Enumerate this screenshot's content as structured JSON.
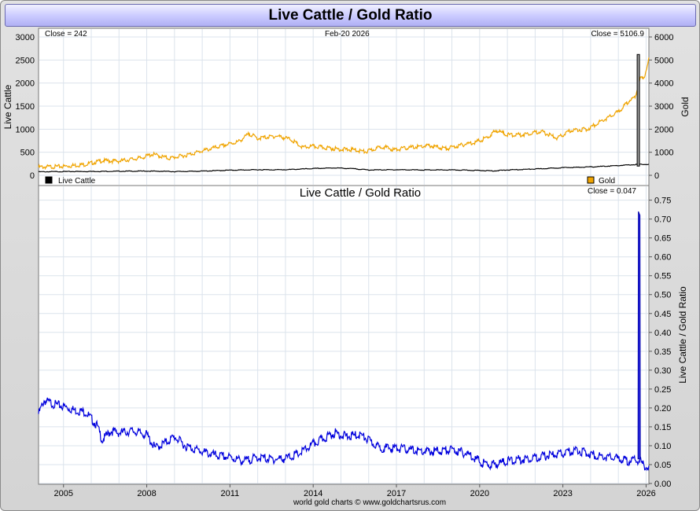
{
  "header": {
    "title": "Live Cattle / Gold Ratio"
  },
  "footer": {
    "credit": "world gold charts © www.goldchartsrus.com"
  },
  "chart_data": [
    {
      "type": "line",
      "title": "",
      "date_label": "Feb-20  2026",
      "x_ticks": [
        "2005",
        "2008",
        "2011",
        "2014",
        "2017",
        "2020",
        "2023",
        "2026"
      ],
      "left_axis": {
        "label": "Live Cattle",
        "range": [
          0,
          3000
        ],
        "ticks": [
          "0",
          "500",
          "1000",
          "1500",
          "2000",
          "2500",
          "3000"
        ]
      },
      "right_axis": {
        "label": "Gold",
        "range": [
          0,
          6000
        ],
        "ticks": [
          "0",
          "1000",
          "2000",
          "3000",
          "4000",
          "5000",
          "6000"
        ]
      },
      "series": [
        {
          "name": "Live Cattle",
          "axis": "left",
          "close_label": "Close = 242",
          "color": "#000000",
          "points": [
            [
              2004.1,
              80
            ],
            [
              2005,
              85
            ],
            [
              2006,
              88
            ],
            [
              2007,
              92
            ],
            [
              2008,
              95
            ],
            [
              2008.7,
              90
            ],
            [
              2009,
              85
            ],
            [
              2010,
              95
            ],
            [
              2011,
              115
            ],
            [
              2012,
              125
            ],
            [
              2013,
              125
            ],
            [
              2014,
              150
            ],
            [
              2014.8,
              165
            ],
            [
              2015.5,
              145
            ],
            [
              2016,
              120
            ],
            [
              2017,
              125
            ],
            [
              2018,
              120
            ],
            [
              2019,
              120
            ],
            [
              2020,
              110
            ],
            [
              2020.5,
              100
            ],
            [
              2021,
              120
            ],
            [
              2022,
              140
            ],
            [
              2023,
              170
            ],
            [
              2024,
              185
            ],
            [
              2025,
              215
            ],
            [
              2025.7,
              240
            ],
            [
              2026.1,
              242
            ]
          ]
        },
        {
          "name": "Gold",
          "axis": "right",
          "close_label": "Close = 5106.9",
          "color": "#f0a400",
          "points": [
            [
              2004.1,
              400
            ],
            [
              2005,
              430
            ],
            [
              2005.8,
              520
            ],
            [
              2006.4,
              680
            ],
            [
              2007,
              660
            ],
            [
              2007.8,
              800
            ],
            [
              2008.2,
              960
            ],
            [
              2008.8,
              780
            ],
            [
              2009.5,
              940
            ],
            [
              2010,
              1100
            ],
            [
              2010.8,
              1350
            ],
            [
              2011.3,
              1500
            ],
            [
              2011.7,
              1850
            ],
            [
              2012,
              1650
            ],
            [
              2012.7,
              1750
            ],
            [
              2013.2,
              1600
            ],
            [
              2013.6,
              1250
            ],
            [
              2014,
              1300
            ],
            [
              2014.9,
              1180
            ],
            [
              2015.5,
              1150
            ],
            [
              2015.9,
              1060
            ],
            [
              2016.5,
              1300
            ],
            [
              2016.9,
              1150
            ],
            [
              2017.5,
              1250
            ],
            [
              2018.2,
              1330
            ],
            [
              2018.8,
              1200
            ],
            [
              2019.5,
              1400
            ],
            [
              2019.9,
              1500
            ],
            [
              2020.3,
              1700
            ],
            [
              2020.6,
              2000
            ],
            [
              2021,
              1800
            ],
            [
              2021.5,
              1800
            ],
            [
              2022.2,
              1950
            ],
            [
              2022.8,
              1650
            ],
            [
              2023.3,
              2000
            ],
            [
              2023.9,
              2050
            ],
            [
              2024.3,
              2350
            ],
            [
              2024.8,
              2650
            ],
            [
              2025.1,
              2900
            ],
            [
              2025.4,
              3300
            ],
            [
              2025.6,
              3400
            ],
            [
              2025.75,
              4100
            ],
            [
              2025.82,
              4300
            ],
            [
              2025.9,
              4200
            ],
            [
              2026,
              4600
            ],
            [
              2026.1,
              5107
            ]
          ]
        }
      ],
      "spike": {
        "x": 2025.72,
        "top": 2620,
        "bottom": 200,
        "axis": "left"
      }
    },
    {
      "type": "line",
      "title": "Live Cattle  /  Gold Ratio",
      "x_ticks": [
        "2005",
        "2008",
        "2011",
        "2014",
        "2017",
        "2020",
        "2023",
        "2026"
      ],
      "right_axis": {
        "label": "Live Cattle / Gold Ratio",
        "range": [
          0,
          0.77
        ],
        "ticks": [
          "0.00",
          "0.05",
          "0.10",
          "0.15",
          "0.20",
          "0.25",
          "0.30",
          "0.35",
          "0.40",
          "0.45",
          "0.50",
          "0.55",
          "0.60",
          "0.65",
          "0.70",
          "0.75"
        ]
      },
      "series": [
        {
          "name": "Live Cattle / Gold Ratio",
          "close_label": "Close = 0.047",
          "color": "#0000dd",
          "points": [
            [
              2004.1,
              0.19
            ],
            [
              2004.3,
              0.225
            ],
            [
              2004.7,
              0.215
            ],
            [
              2005,
              0.21
            ],
            [
              2005.4,
              0.2
            ],
            [
              2005.8,
              0.195
            ],
            [
              2006.2,
              0.16
            ],
            [
              2006.4,
              0.12
            ],
            [
              2006.7,
              0.145
            ],
            [
              2007,
              0.14
            ],
            [
              2007.5,
              0.145
            ],
            [
              2008,
              0.135
            ],
            [
              2008.3,
              0.1
            ],
            [
              2008.7,
              0.115
            ],
            [
              2009,
              0.13
            ],
            [
              2009.4,
              0.105
            ],
            [
              2010,
              0.09
            ],
            [
              2010.5,
              0.08
            ],
            [
              2011,
              0.075
            ],
            [
              2011.5,
              0.065
            ],
            [
              2012,
              0.075
            ],
            [
              2012.5,
              0.07
            ],
            [
              2013,
              0.072
            ],
            [
              2013.5,
              0.085
            ],
            [
              2014,
              0.11
            ],
            [
              2014.5,
              0.13
            ],
            [
              2014.8,
              0.14
            ],
            [
              2015.2,
              0.13
            ],
            [
              2015.7,
              0.135
            ],
            [
              2016,
              0.12
            ],
            [
              2016.4,
              0.1
            ],
            [
              2017,
              0.1
            ],
            [
              2017.5,
              0.095
            ],
            [
              2018,
              0.09
            ],
            [
              2018.5,
              0.092
            ],
            [
              2019,
              0.095
            ],
            [
              2019.3,
              0.09
            ],
            [
              2019.7,
              0.08
            ],
            [
              2020.1,
              0.06
            ],
            [
              2020.4,
              0.055
            ],
            [
              2020.7,
              0.06
            ],
            [
              2021,
              0.065
            ],
            [
              2021.5,
              0.07
            ],
            [
              2022,
              0.075
            ],
            [
              2022.5,
              0.08
            ],
            [
              2023,
              0.085
            ],
            [
              2023.5,
              0.095
            ],
            [
              2023.8,
              0.088
            ],
            [
              2024.2,
              0.08
            ],
            [
              2024.7,
              0.075
            ],
            [
              2025,
              0.072
            ],
            [
              2025.3,
              0.065
            ],
            [
              2025.6,
              0.068
            ],
            [
              2025.72,
              0.065
            ]
          ]
        }
      ],
      "spike": {
        "x": 2025.75,
        "top": 0.72,
        "bottom": 0.065
      },
      "tail": [
        [
          2025.78,
          0.068
        ],
        [
          2025.85,
          0.058
        ],
        [
          2025.95,
          0.052
        ],
        [
          2026.1,
          0.047
        ]
      ]
    }
  ]
}
